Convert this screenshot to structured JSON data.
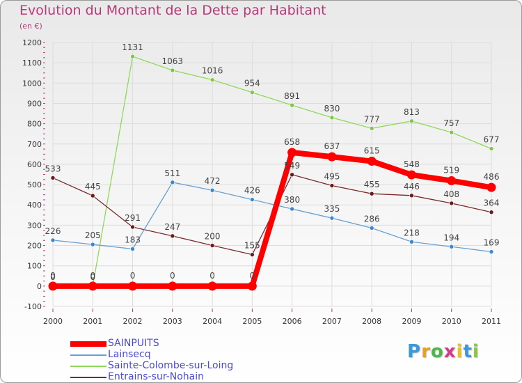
{
  "chart_data": {
    "type": "line",
    "title": "Evolution du Montant de la Dette par Habitant",
    "subtitle": "(en €)",
    "categories": [
      "2000",
      "2001",
      "2002",
      "2003",
      "2004",
      "2005",
      "2006",
      "2007",
      "2008",
      "2009",
      "2010",
      "2011"
    ],
    "ylim": [
      -100,
      1200
    ],
    "yticks": [
      -100,
      0,
      100,
      200,
      300,
      400,
      500,
      600,
      700,
      800,
      900,
      1000,
      1100,
      1200
    ],
    "grid": true,
    "legend_position": "bottom-left",
    "series": [
      {
        "name": "Sainte-Colombe-sur-Loing",
        "color": "#8ed85a",
        "marker": "#7cc83e",
        "values": [
          0,
          0,
          1131,
          1063,
          1016,
          954,
          891,
          830,
          777,
          813,
          757,
          677
        ]
      },
      {
        "name": "Entrains-sur-Nohain",
        "color": "#7a2a2a",
        "marker": "#6a1a1a",
        "values": [
          533,
          445,
          291,
          247,
          200,
          155,
          549,
          495,
          455,
          446,
          408,
          364
        ]
      },
      {
        "name": "Lainsecq",
        "color": "#6aa0d0",
        "marker": "#3a88cf",
        "values": [
          226,
          205,
          183,
          511,
          472,
          426,
          380,
          335,
          286,
          218,
          194,
          169
        ]
      },
      {
        "name": "SAINPUITS",
        "color": "#ff0000",
        "marker": "#ff0000",
        "values": [
          0,
          0,
          0,
          0,
          0,
          0,
          658,
          637,
          615,
          548,
          519,
          486
        ]
      }
    ],
    "legend_order": [
      "SAINPUITS",
      "Lainsecq",
      "Sainte-Colombe-sur-Loing",
      "Entrains-sur-Nohain"
    ]
  },
  "logo": {
    "letters": [
      "P",
      "r",
      "o",
      "x",
      "i",
      "t",
      "i"
    ],
    "colors": [
      "#3a9ad9",
      "#e8a020",
      "#4ab848",
      "#d83a8a",
      "#e8c020",
      "#3a9ad9",
      "#8ac83a"
    ]
  }
}
